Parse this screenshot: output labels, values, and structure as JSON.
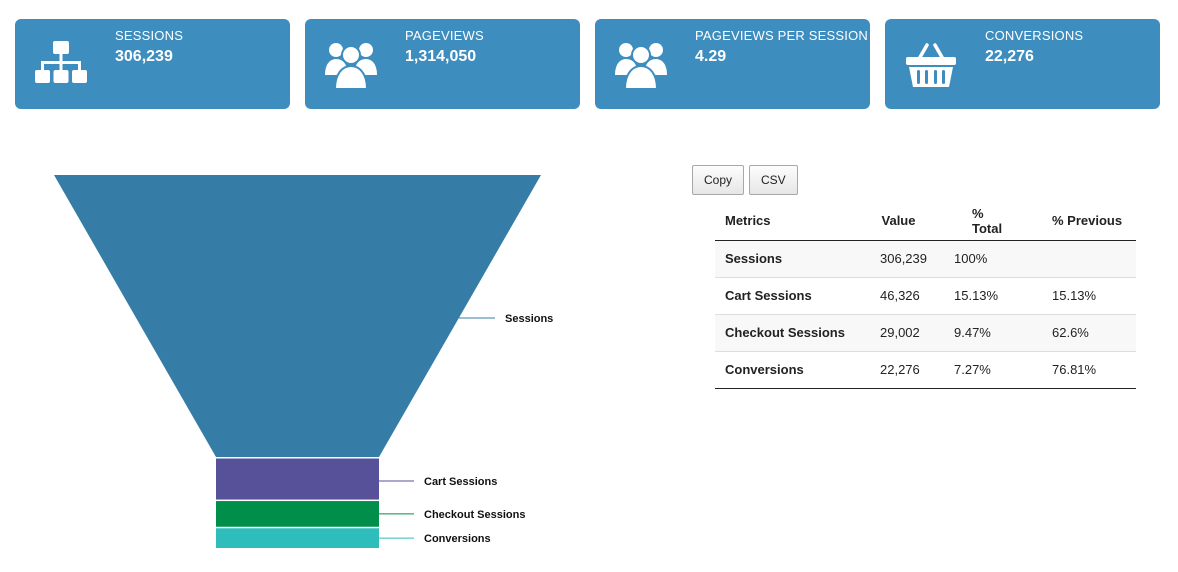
{
  "cards": [
    {
      "label": "SESSIONS",
      "value": "306,239",
      "icon": "sitemap-icon",
      "color": "#3d8dbf"
    },
    {
      "label": "PAGEVIEWS",
      "value": "1,314,050",
      "icon": "users-icon",
      "color": "#3d8dbf"
    },
    {
      "label": "PAGEVIEWS PER SESSION",
      "value": "4.29",
      "icon": "users-icon",
      "color": "#3d8dbf"
    },
    {
      "label": "CONVERSIONS",
      "value": "22,276",
      "icon": "shopping-basket-icon",
      "color": "#3d8dbf"
    }
  ],
  "toolbar": {
    "copy_label": "Copy",
    "csv_label": "CSV"
  },
  "table": {
    "headers": [
      "Metrics",
      "Value",
      "% Total",
      "% Previous"
    ],
    "rows": [
      {
        "metric": "Sessions",
        "value": "306,239",
        "total": "100%",
        "previous": ""
      },
      {
        "metric": "Cart Sessions",
        "value": "46,326",
        "total": "15.13%",
        "previous": "15.13%"
      },
      {
        "metric": "Checkout Sessions",
        "value": "29,002",
        "total": "9.47%",
        "previous": "62.6%"
      },
      {
        "metric": "Conversions",
        "value": "22,276",
        "total": "7.27%",
        "previous": "76.81%"
      }
    ]
  },
  "chart_data": {
    "type": "funnel",
    "categories": [
      "Sessions",
      "Cart Sessions",
      "Checkout Sessions",
      "Conversions"
    ],
    "values": [
      306239,
      46326,
      29002,
      22276
    ],
    "colors": [
      "#357da6",
      "#565198",
      "#008f4b",
      "#2ebdbb"
    ]
  }
}
